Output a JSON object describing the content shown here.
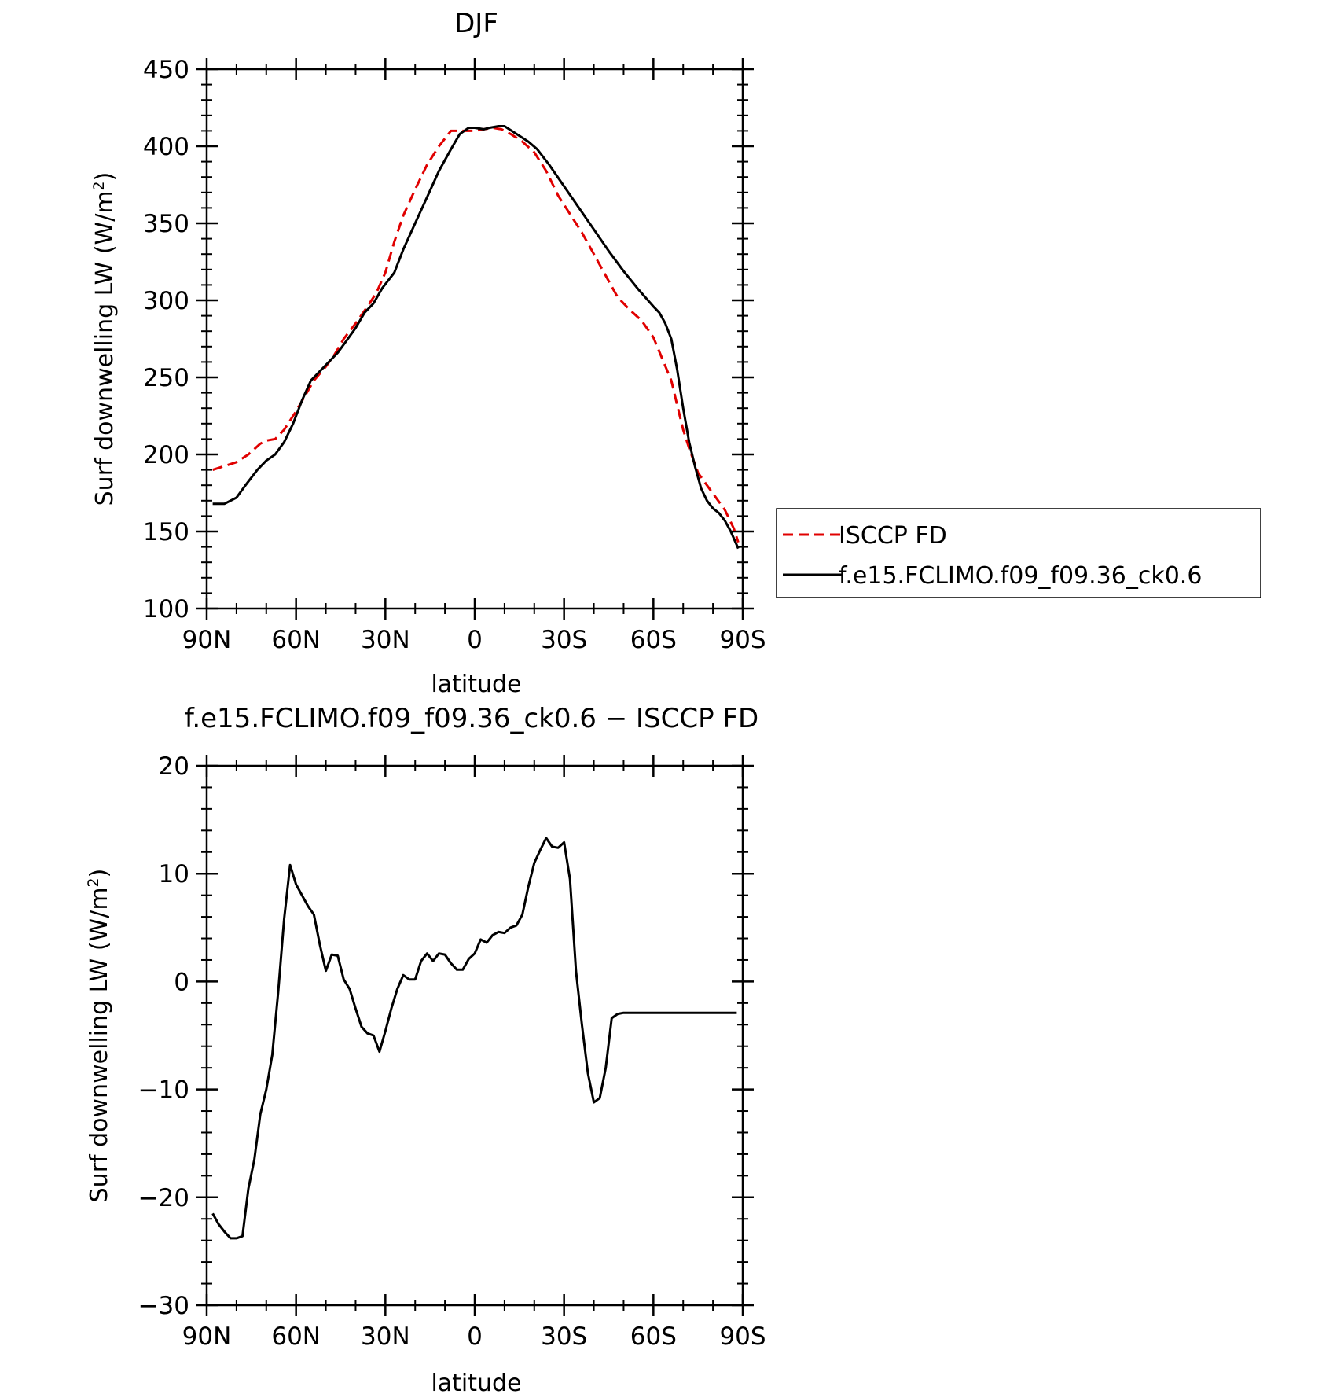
{
  "chart_data": [
    {
      "type": "line",
      "title": "DJF",
      "xlabel": "latitude",
      "ylabel": "Surf downwelling LW",
      "ylabel_unit": "(W/m",
      "ylabel_sup": "2",
      "ylabel_close": ")",
      "xlim": [
        90,
        -90
      ],
      "ylim": [
        100,
        450
      ],
      "x_ticks": [
        90,
        60,
        30,
        0,
        -30,
        -60,
        -90
      ],
      "x_tick_labels": [
        "90N",
        "60N",
        "30N",
        "0",
        "30S",
        "60S",
        "90S"
      ],
      "y_ticks": [
        100,
        150,
        200,
        250,
        300,
        350,
        400,
        450
      ],
      "y_tick_labels": [
        "100",
        "150",
        "200",
        "250",
        "300",
        "350",
        "400",
        "450"
      ],
      "grid": false,
      "legend_position": "right",
      "series": [
        {
          "name": "ISCCP FD",
          "color": "#e00000",
          "dash": "dashed",
          "x": [
            88,
            80,
            76,
            72,
            70,
            67,
            64,
            60,
            57,
            54,
            50,
            47,
            44,
            40,
            36,
            33,
            30,
            27,
            24,
            20,
            16,
            12,
            8,
            4,
            0,
            -3,
            -6,
            -9,
            -12,
            -16,
            -20,
            -24,
            -28,
            -32,
            -36,
            -40,
            -44,
            -48,
            -52,
            -56,
            -60,
            -63,
            -66,
            -68,
            -70,
            -72,
            -75,
            -78,
            -81,
            -84,
            -87,
            -88.5
          ],
          "y": [
            190,
            195,
            200,
            207,
            209,
            210,
            216,
            228,
            238,
            248,
            257,
            265,
            275,
            285,
            296,
            305,
            318,
            338,
            355,
            372,
            388,
            400,
            410,
            410,
            410,
            411,
            412,
            411,
            408,
            403,
            396,
            384,
            368,
            356,
            344,
            330,
            316,
            302,
            294,
            287,
            276,
            262,
            248,
            232,
            216,
            204,
            188,
            180,
            172,
            164,
            152,
            143
          ]
        },
        {
          "name": "f.e15.FCLIMO.f09_f09.36_ck0.6",
          "color": "#000000",
          "dash": "solid",
          "x": [
            88,
            84,
            80,
            77,
            73,
            70,
            67,
            64,
            61,
            58,
            55,
            52,
            49,
            46,
            43,
            40,
            37,
            34,
            31,
            27,
            24,
            20,
            16,
            12,
            8,
            5,
            2,
            0,
            -3,
            -5,
            -8,
            -10,
            -14,
            -18,
            -21,
            -25,
            -30,
            -35,
            -40,
            -45,
            -50,
            -55,
            -60,
            -62,
            -64,
            -66,
            -68,
            -70,
            -72,
            -74,
            -76,
            -78,
            -80,
            -82,
            -84,
            -86,
            -88.5
          ],
          "y": [
            168,
            168,
            172,
            180,
            190,
            196,
            200,
            208,
            220,
            235,
            248,
            254,
            260,
            266,
            274,
            282,
            292,
            298,
            308,
            318,
            333,
            350,
            367,
            384,
            398,
            408,
            412,
            412,
            411,
            412,
            413,
            413,
            408,
            403,
            398,
            388,
            374,
            360,
            346,
            332,
            319,
            307,
            296,
            292,
            285,
            275,
            255,
            230,
            208,
            192,
            178,
            170,
            165,
            162,
            157,
            150,
            139
          ]
        }
      ]
    },
    {
      "type": "line",
      "title": "f.e15.FCLIMO.f09_f09.36_ck0.6 − ISCCP FD",
      "xlabel": "latitude",
      "ylabel": "Surf downwelling LW",
      "ylabel_unit": "(W/m",
      "ylabel_sup": "2",
      "ylabel_close": ")",
      "xlim": [
        90,
        -90
      ],
      "ylim": [
        -30,
        20
      ],
      "x_ticks": [
        90,
        60,
        30,
        0,
        -30,
        -60,
        -90
      ],
      "x_tick_labels": [
        "90N",
        "60N",
        "30N",
        "0",
        "30S",
        "60S",
        "90S"
      ],
      "y_ticks": [
        -30,
        -20,
        -10,
        0,
        10,
        20
      ],
      "y_tick_labels": [
        "−30",
        "−20",
        "−10",
        "0",
        "10",
        "20"
      ],
      "grid": false,
      "series": [
        {
          "color": "#000000",
          "dash": "solid",
          "x": [
            88,
            86,
            84,
            82,
            80,
            78,
            76,
            74,
            72,
            70,
            68,
            66,
            64,
            62,
            60,
            58,
            56,
            54,
            52,
            50,
            48,
            46,
            44,
            42,
            40,
            38,
            36,
            34,
            32,
            30,
            28,
            26,
            24,
            22,
            20,
            18,
            16,
            14,
            12,
            10,
            8,
            6,
            4,
            2,
            0,
            -2,
            -4,
            -6,
            -8,
            -10,
            -12,
            -14,
            -16,
            -18,
            -20,
            -22,
            -24,
            -26,
            -28,
            -30,
            -32,
            -34,
            -36,
            -38,
            -40,
            -42,
            -44,
            -46,
            -48,
            -50,
            -52,
            -54,
            -56,
            -58,
            -60,
            -62,
            -64,
            -66,
            -68,
            -70,
            -72,
            -74,
            -76,
            -78,
            -80,
            -82,
            -84,
            -86,
            -88
          ],
          "y": [
            -21.5,
            -22.5,
            -23.2,
            -23.8,
            -23.8,
            -23.6,
            -19.2,
            -16.5,
            -12.3,
            -10.0,
            -6.8,
            -1.0,
            5.8,
            10.8,
            9.0,
            8.0,
            7.0,
            6.2,
            3.4,
            1.0,
            2.5,
            2.4,
            0.2,
            -0.7,
            -2.5,
            -4.2,
            -4.8,
            -5.0,
            -6.5,
            -4.6,
            -2.5,
            -0.7,
            0.6,
            0.2,
            0.2,
            1.9,
            2.6,
            1.9,
            2.6,
            2.5,
            1.7,
            1.1,
            1.1,
            2.1,
            2.6,
            3.9,
            3.6,
            4.3,
            4.6,
            4.5,
            5.0,
            5.2,
            6.2,
            8.8,
            11.0,
            12.2,
            13.3,
            12.5,
            12.4,
            12.9,
            9.5,
            1.0,
            -4.0,
            -8.5,
            -11.2,
            -10.8,
            -8.0,
            -3.4,
            -3.0,
            -2.9,
            -2.9,
            -2.9,
            -2.9,
            -2.9,
            -2.9,
            -2.9,
            -2.9,
            -2.9,
            -2.9,
            -2.9,
            -2.9,
            -2.9,
            -2.9,
            -2.9,
            -2.9,
            -2.9,
            -2.9,
            -2.9,
            -2.9
          ]
        }
      ]
    }
  ]
}
